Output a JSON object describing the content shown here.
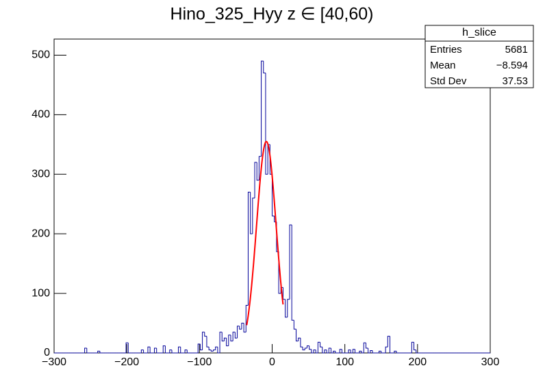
{
  "chart_data": {
    "type": "histogram",
    "title": "Hino_325_Hyy z  ∈ [40,60)",
    "bins": [
      -300,
      -297,
      -294,
      -291,
      -288,
      -285,
      -282,
      -279,
      -276,
      -273,
      -270,
      -267,
      -264,
      -261,
      -258,
      -255,
      -252,
      -249,
      -246,
      -243,
      -240,
      -237,
      -234,
      -231,
      -228,
      -225,
      -222,
      -219,
      -216,
      -213,
      -210,
      -207,
      -204,
      -201,
      -198,
      -195,
      -192,
      -189,
      -186,
      -183,
      -180,
      -177,
      -174,
      -171,
      -168,
      -165,
      -162,
      -159,
      -156,
      -153,
      -150,
      -147,
      -144,
      -141,
      -138,
      -135,
      -132,
      -129,
      -126,
      -123,
      -120,
      -117,
      -114,
      -111,
      -108,
      -105,
      -102,
      -99,
      -96,
      -93,
      -90,
      -87,
      -84,
      -81,
      -78,
      -75,
      -72,
      -69,
      -66,
      -63,
      -60,
      -57,
      -54,
      -51,
      -48,
      -45,
      -42,
      -39,
      -36,
      -33,
      -30,
      -27,
      -24,
      -21,
      -18,
      -15,
      -12,
      -9,
      -6,
      -3,
      0,
      3,
      6,
      9,
      12,
      15,
      18,
      21,
      24,
      27,
      30,
      33,
      36,
      39,
      42,
      45,
      48,
      51,
      54,
      57,
      60,
      63,
      66,
      69,
      72,
      75,
      78,
      81,
      84,
      87,
      90,
      93,
      96,
      99,
      102,
      105,
      108,
      111,
      114,
      117,
      120,
      123,
      126,
      129,
      132,
      135,
      138,
      141,
      144,
      147,
      150,
      153,
      156,
      159,
      162,
      165,
      168,
      171,
      174,
      177,
      180,
      183,
      186,
      189,
      192,
      195,
      198,
      201,
      204,
      207,
      210,
      213,
      216,
      219,
      222,
      225,
      228,
      231,
      234,
      237,
      240,
      243,
      246,
      249,
      252,
      255,
      258,
      261,
      264,
      267,
      270,
      273,
      276,
      279,
      282,
      285,
      288,
      291,
      294,
      297,
      300
    ],
    "values": [
      0,
      0,
      0,
      0,
      0,
      0,
      0,
      0,
      0,
      0,
      0,
      0,
      0,
      0,
      8,
      0,
      0,
      0,
      0,
      0,
      3,
      0,
      0,
      0,
      0,
      0,
      0,
      0,
      0,
      0,
      0,
      0,
      0,
      17,
      0,
      0,
      0,
      0,
      0,
      0,
      5,
      0,
      0,
      10,
      0,
      0,
      8,
      0,
      0,
      0,
      12,
      0,
      0,
      5,
      0,
      0,
      0,
      10,
      0,
      0,
      5,
      0,
      0,
      0,
      0,
      0,
      15,
      5,
      35,
      28,
      10,
      5,
      3,
      5,
      10,
      0,
      35,
      20,
      25,
      12,
      30,
      20,
      35,
      25,
      45,
      40,
      50,
      35,
      80,
      270,
      200,
      260,
      320,
      290,
      330,
      490,
      470,
      300,
      350,
      300,
      230,
      220,
      170,
      100,
      110,
      90,
      60,
      90,
      215,
      55,
      40,
      20,
      25,
      10,
      5,
      8,
      12,
      6,
      0,
      5,
      0,
      18,
      10,
      0,
      5,
      0,
      8,
      0,
      3,
      0,
      0,
      6,
      0,
      0,
      0,
      5,
      0,
      6,
      0,
      0,
      3,
      0,
      17,
      8,
      0,
      4,
      0,
      0,
      0,
      3,
      0,
      0,
      10,
      28,
      0,
      0,
      3,
      0,
      0,
      0,
      0,
      0,
      0,
      0,
      18,
      5,
      0,
      0,
      0,
      0,
      0,
      0,
      0,
      0,
      0,
      0,
      0,
      0,
      0,
      0,
      0,
      0,
      0,
      0,
      0,
      0,
      0,
      0,
      0,
      0,
      0,
      0,
      0,
      0,
      0,
      0,
      0,
      0,
      0,
      0
    ],
    "color": "#000099",
    "fit": {
      "amplitude": 355,
      "mean": -8,
      "sigma": 13.4,
      "range": [
        -35,
        15
      ],
      "color": "#ff0000"
    },
    "xlim": [
      -300,
      300
    ],
    "xticks": [
      {
        "value": -300,
        "label": "−300"
      },
      {
        "value": -200,
        "label": "−200"
      },
      {
        "value": -100,
        "label": "−100"
      },
      0,
      100,
      200,
      300
    ],
    "ylim": [
      0,
      527
    ],
    "yticks": [
      0,
      100,
      200,
      300,
      400,
      500
    ],
    "stats": {
      "title": "h_slice",
      "rows": [
        [
          "Entries",
          "5681"
        ],
        [
          "Mean",
          "−8.594"
        ],
        [
          "Std Dev",
          "37.53"
        ]
      ]
    }
  }
}
